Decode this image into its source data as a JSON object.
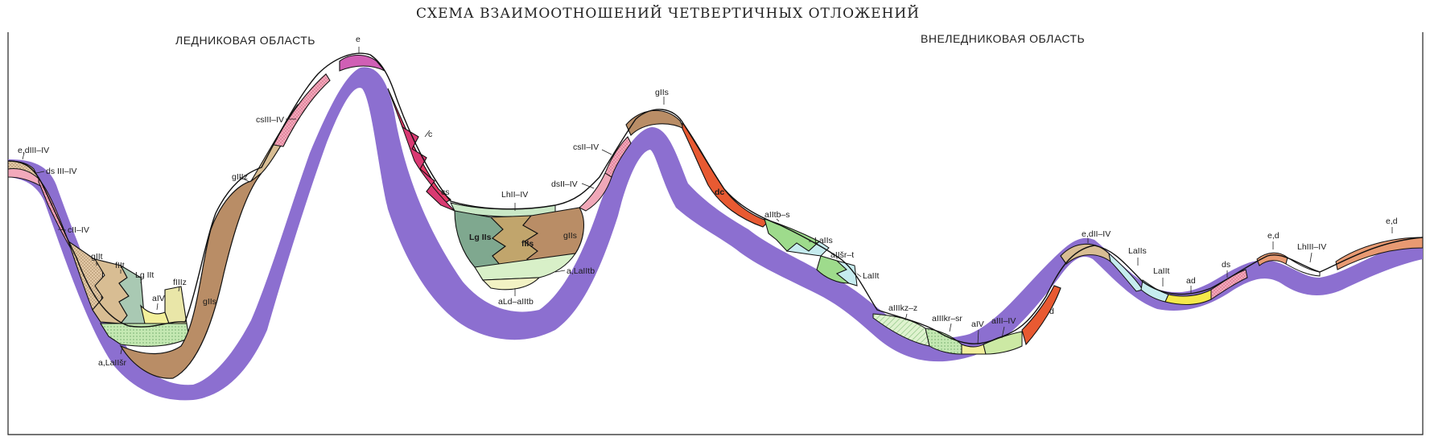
{
  "title": "СХЕМА ВЗАИМООТНОШЕНИЙ ЧЕТВЕРТИЧНЫХ ОТЛОЖЕНИЙ",
  "regions": {
    "glacial": "ЛЕДНИКОВАЯ ОБЛАСТЬ",
    "extraglacial": "ВНЕЛЕДНИКОВАЯ ОБЛАСТЬ"
  },
  "labels": {
    "e_dIII_IV": "e,dIII–IV",
    "dsIII_IV": "ds III–IV",
    "cII_IV": "cII–IV",
    "gIIt": "gIIt",
    "fIIt": "fIIt",
    "lgIIt": "Lg IIt",
    "aIV_1": "aIV",
    "fIIIz": "fIIIz",
    "a_laIIsr": "a,LaIIšr",
    "gIIIz": "gIIIz",
    "csIII_IV": "csIII–IV",
    "gIIs_1": "gIIs",
    "e_peak": "e",
    "c": "c",
    "cs": "cs",
    "lhII_IV": "LhII–IV",
    "lgIIs": "Lg IIs",
    "fIIs": "fIIs",
    "gIIs_2": "gIIs",
    "a_laIItb": "a,LaIItb",
    "ald_aIItb": "aLd–aIItb",
    "csII_IV": "csII–IV",
    "dsII_IV": "dsII–IV",
    "gIIs_3": "gIIs",
    "dc": "dc",
    "aIItb_s": "aIItb–s",
    "laIIs_1": "LaIIs",
    "aIIsr_t": "aIIšr–t",
    "laIIt_1": "LaIIt",
    "aIIIkz_z": "aIIIkz–z",
    "aIIIkr_sr": "aIIIkr–sr",
    "aIV_2": "aIV",
    "aIII_IV": "aIII–IV",
    "d": "d",
    "e_dII_IV": "e,dII–IV",
    "laIIs_2": "LaIIs",
    "laIIt_2": "LaIIt",
    "ad": "ad",
    "ds": "ds",
    "e_d_1": "e,d",
    "lhIII_IV": "LhIII–IV",
    "e_d_2": "e,d"
  },
  "colors": {
    "bedrock": "#8c6fd0",
    "moraine": "#b98d66",
    "fluvioglacial": "#d8bd93",
    "limnoglacial": "#7fa88f",
    "alluvial_green": "#9edb8c",
    "alluvial_yellow": "#f2ef9a",
    "eluvium": "#d05fb5",
    "colluvium": "#e63a66",
    "deluvium": "#e85a32",
    "lake_blue": "#c6ecef",
    "slope_pink": "#f0a8b8"
  }
}
